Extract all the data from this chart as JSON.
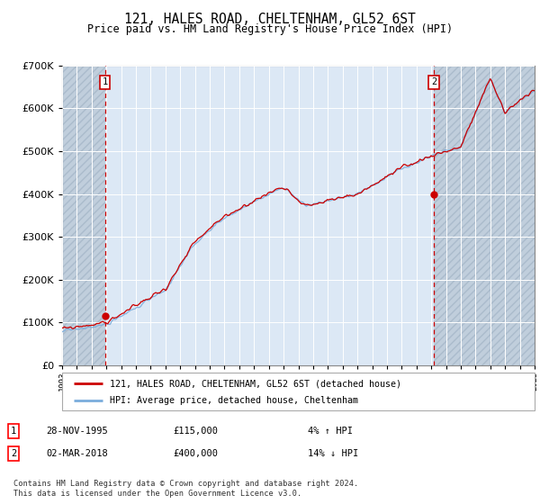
{
  "title": "121, HALES ROAD, CHELTENHAM, GL52 6ST",
  "subtitle": "Price paid vs. HM Land Registry's House Price Index (HPI)",
  "ylim": [
    0,
    700000
  ],
  "xlim_start": 1993,
  "xlim_end": 2025,
  "sale1": {
    "date_num": 1995.91,
    "price": 115000,
    "label": "1",
    "date_str": "28-NOV-1995",
    "pct": "4%",
    "dir": "↑"
  },
  "sale2": {
    "date_num": 2018.17,
    "price": 400000,
    "label": "2",
    "date_str": "02-MAR-2018",
    "pct": "14%",
    "dir": "↓"
  },
  "legend_label_red": "121, HALES ROAD, CHELTENHAM, GL52 6ST (detached house)",
  "legend_label_blue": "HPI: Average price, detached house, Cheltenham",
  "footer": "Contains HM Land Registry data © Crown copyright and database right 2024.\nThis data is licensed under the Open Government Licence v3.0.",
  "sale_marker_color": "#cc0000",
  "hpi_line_color": "#7aaddc",
  "price_line_color": "#cc0000",
  "bg_color": "#dce8f5",
  "hatch_color": "#c0cedc",
  "vline_color": "#cc0000",
  "grid_color": "#ffffff",
  "seed_hpi": 17,
  "seed_price": 99
}
